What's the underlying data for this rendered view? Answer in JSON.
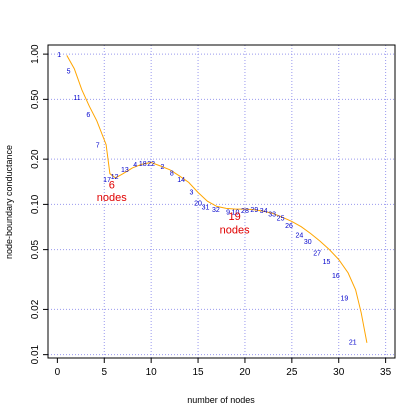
{
  "chart_data": {
    "type": "line",
    "title": "",
    "xlabel": "number of nodes",
    "ylabel": "node-boundary conductance",
    "xlim": [
      -1,
      36
    ],
    "ylim": [
      0.0095,
      1.15
    ],
    "y_scale": "log",
    "grid": true,
    "x_ticks": [
      0,
      5,
      10,
      15,
      20,
      25,
      30,
      35
    ],
    "y_ticks": [
      {
        "value": 1.0,
        "label": "1.00"
      },
      {
        "value": 0.5,
        "label": "0.50"
      },
      {
        "value": 0.2,
        "label": "0.20"
      },
      {
        "value": 0.1,
        "label": "0.10"
      },
      {
        "value": 0.05,
        "label": "0.05"
      },
      {
        "value": 0.02,
        "label": "0.02"
      },
      {
        "value": 0.01,
        "label": "0.01"
      }
    ],
    "gridlines_x": [
      5,
      10,
      15,
      20,
      25,
      30,
      35
    ],
    "gridlines_y": [
      1.0,
      0.5,
      0.2,
      0.1,
      0.05,
      0.02,
      0.01
    ],
    "series": [
      {
        "color": "#ffa500",
        "x": [
          1,
          1.8,
          2.6,
          3.4,
          4.2,
          5.2,
          5.6,
          6.2,
          7.0,
          8.0,
          9.0,
          10.0,
          11.0,
          12.0,
          13.0,
          14.0,
          15.0,
          16.0,
          17.0,
          18.0,
          19.0,
          20.0,
          21.0,
          22.0,
          23.0,
          24.0,
          25.0,
          26.0,
          27.0,
          28.0,
          29.0,
          30.0,
          31.0,
          31.8,
          32.4,
          33.0
        ],
        "y": [
          0.98,
          0.8,
          0.58,
          0.45,
          0.36,
          0.25,
          0.16,
          0.15,
          0.16,
          0.175,
          0.185,
          0.19,
          0.18,
          0.17,
          0.155,
          0.14,
          0.12,
          0.105,
          0.097,
          0.094,
          0.093,
          0.093,
          0.092,
          0.09,
          0.087,
          0.082,
          0.077,
          0.071,
          0.064,
          0.057,
          0.05,
          0.043,
          0.035,
          0.027,
          0.019,
          0.012
        ]
      }
    ],
    "point_labels": [
      {
        "text": "1",
        "x": 0.2,
        "y": 1.0
      },
      {
        "text": "5",
        "x": 1.2,
        "y": 0.78
      },
      {
        "text": "11",
        "x": 2.1,
        "y": 0.52
      },
      {
        "text": "6",
        "x": 3.3,
        "y": 0.4
      },
      {
        "text": "7",
        "x": 4.3,
        "y": 0.25
      },
      {
        "text": "17",
        "x": 5.3,
        "y": 0.148
      },
      {
        "text": "12",
        "x": 6.1,
        "y": 0.154
      },
      {
        "text": "13",
        "x": 7.2,
        "y": 0.172
      },
      {
        "text": "4",
        "x": 8.3,
        "y": 0.185
      },
      {
        "text": "18",
        "x": 9.1,
        "y": 0.188
      },
      {
        "text": "22",
        "x": 10.0,
        "y": 0.188
      },
      {
        "text": "2",
        "x": 11.2,
        "y": 0.18
      },
      {
        "text": "8",
        "x": 12.2,
        "y": 0.163
      },
      {
        "text": "14",
        "x": 13.2,
        "y": 0.148
      },
      {
        "text": "3",
        "x": 14.3,
        "y": 0.122
      },
      {
        "text": "20",
        "x": 15.0,
        "y": 0.103
      },
      {
        "text": "31",
        "x": 15.8,
        "y": 0.097
      },
      {
        "text": "32",
        "x": 16.9,
        "y": 0.093
      },
      {
        "text": "9",
        "x": 18.2,
        "y": 0.09
      },
      {
        "text": "10",
        "x": 19.0,
        "y": 0.09
      },
      {
        "text": "28",
        "x": 20.0,
        "y": 0.092
      },
      {
        "text": "29",
        "x": 21.0,
        "y": 0.093
      },
      {
        "text": "34",
        "x": 22.0,
        "y": 0.092
      },
      {
        "text": "33",
        "x": 22.9,
        "y": 0.087
      },
      {
        "text": "25",
        "x": 23.8,
        "y": 0.082
      },
      {
        "text": "26",
        "x": 24.7,
        "y": 0.073
      },
      {
        "text": "24",
        "x": 25.8,
        "y": 0.063
      },
      {
        "text": "30",
        "x": 26.7,
        "y": 0.057
      },
      {
        "text": "27",
        "x": 27.7,
        "y": 0.048
      },
      {
        "text": "15",
        "x": 28.7,
        "y": 0.042
      },
      {
        "text": "16",
        "x": 29.7,
        "y": 0.034
      },
      {
        "text": "19",
        "x": 30.6,
        "y": 0.024
      },
      {
        "text": "21",
        "x": 31.5,
        "y": 0.0122
      }
    ],
    "annotations": [
      {
        "line1": "6",
        "line2": "nodes",
        "x": 5.8
      },
      {
        "line1": "19",
        "line2": "nodes",
        "x": 18.9
      }
    ]
  }
}
